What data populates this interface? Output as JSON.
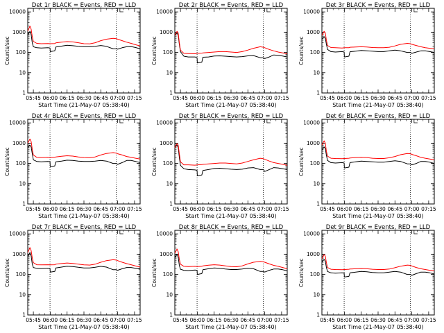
{
  "figure": {
    "background": "#ffffff",
    "axis_color": "#000000"
  },
  "shared": {
    "xlabel": "Start Time (21-May-07 05:38:40)",
    "ylabel": "Counts/sec",
    "x_ticks": [
      "05:45",
      "06:00",
      "06:15",
      "06:30",
      "06:45",
      "07:00",
      "07:15"
    ],
    "y_ticks": [
      "1",
      "10",
      "100",
      "1000",
      "10000"
    ],
    "x_tick_minutes": [
      5,
      20,
      35,
      50,
      65,
      80,
      95
    ],
    "xlim_minutes": [
      0,
      100
    ],
    "ylim": [
      1,
      15000
    ],
    "y_scale": "log",
    "vlines_minutes": [
      19.8,
      78.8
    ],
    "series_colors": {
      "events": "#000000",
      "lld": "#ff0000"
    }
  },
  "chart_data": [
    {
      "type": "line",
      "title": "Det 1r BLACK = Events, RED = LLD",
      "x": [
        0,
        2,
        3,
        4,
        5,
        8,
        12,
        18,
        19.8,
        20,
        24,
        25,
        30,
        35,
        40,
        45,
        50,
        55,
        60,
        65,
        70,
        76,
        78.8,
        80,
        84,
        88,
        92,
        96,
        100
      ],
      "series": [
        {
          "color": "#000000",
          "values": [
            700,
            1100,
            750,
            300,
            190,
            170,
            165,
            170,
            165,
            110,
            120,
            185,
            205,
            225,
            215,
            200,
            190,
            190,
            200,
            220,
            200,
            150,
            150,
            145,
            170,
            190,
            195,
            175,
            150
          ]
        },
        {
          "color": "#ff0000",
          "values": [
            1100,
            2000,
            1400,
            600,
            350,
            280,
            270,
            275,
            270,
            270,
            275,
            295,
            320,
            340,
            330,
            300,
            270,
            265,
            300,
            380,
            450,
            500,
            480,
            450,
            380,
            320,
            280,
            240,
            210
          ]
        }
      ]
    },
    {
      "type": "line",
      "title": "Det 2r BLACK = Events, RED = LLD",
      "x": [
        0,
        2,
        3,
        4,
        5,
        8,
        12,
        18,
        19.8,
        20,
        24,
        25,
        30,
        35,
        40,
        45,
        50,
        55,
        60,
        65,
        70,
        76,
        78.8,
        80,
        84,
        88,
        92,
        96,
        100
      ],
      "series": [
        {
          "color": "#000000",
          "values": [
            700,
            900,
            700,
            250,
            110,
            65,
            60,
            60,
            55,
            30,
            33,
            58,
            60,
            66,
            68,
            65,
            62,
            60,
            62,
            68,
            70,
            55,
            55,
            50,
            60,
            75,
            72,
            66,
            60
          ]
        },
        {
          "color": "#ff0000",
          "values": [
            700,
            1100,
            900,
            300,
            130,
            90,
            88,
            86,
            90,
            90,
            92,
            95,
            100,
            105,
            110,
            110,
            105,
            100,
            110,
            130,
            160,
            190,
            180,
            170,
            140,
            120,
            105,
            95,
            85
          ]
        }
      ]
    },
    {
      "type": "line",
      "title": "Det 3r BLACK = Events, RED = LLD",
      "x": [
        0,
        2,
        3,
        4,
        5,
        8,
        12,
        18,
        19.8,
        20,
        24,
        25,
        30,
        35,
        40,
        45,
        50,
        55,
        60,
        65,
        70,
        76,
        78.8,
        80,
        84,
        88,
        92,
        96,
        100
      ],
      "series": [
        {
          "color": "#000000",
          "values": [
            450,
            600,
            500,
            250,
            140,
            110,
            105,
            110,
            105,
            60,
            65,
            108,
            115,
            125,
            120,
            115,
            110,
            110,
            120,
            130,
            120,
            100,
            100,
            90,
            105,
            120,
            120,
            110,
            100
          ]
        },
        {
          "color": "#ff0000",
          "values": [
            700,
            1100,
            900,
            400,
            220,
            175,
            170,
            165,
            170,
            170,
            172,
            180,
            185,
            190,
            185,
            175,
            170,
            170,
            180,
            210,
            250,
            280,
            270,
            250,
            220,
            190,
            170,
            160,
            150
          ]
        }
      ]
    },
    {
      "type": "line",
      "title": "Det 4r BLACK = Events, RED = LLD",
      "x": [
        0,
        2,
        3,
        4,
        5,
        8,
        12,
        18,
        19.8,
        20,
        24,
        25,
        30,
        35,
        40,
        45,
        50,
        55,
        60,
        65,
        70,
        76,
        78.8,
        80,
        84,
        88,
        92,
        96,
        100
      ],
      "series": [
        {
          "color": "#000000",
          "values": [
            600,
            800,
            650,
            300,
            150,
            125,
            120,
            125,
            120,
            70,
            75,
            120,
            130,
            145,
            140,
            130,
            125,
            125,
            130,
            140,
            130,
            100,
            100,
            90,
            110,
            140,
            140,
            125,
            110
          ]
        },
        {
          "color": "#ff0000",
          "values": [
            1000,
            1600,
            1200,
            500,
            260,
            200,
            195,
            200,
            195,
            195,
            200,
            210,
            225,
            240,
            230,
            210,
            195,
            190,
            210,
            260,
            310,
            340,
            320,
            300,
            260,
            220,
            200,
            180,
            165
          ]
        }
      ]
    },
    {
      "type": "line",
      "title": "Det 5r BLACK = Events, RED = LLD",
      "x": [
        0,
        2,
        3,
        4,
        5,
        8,
        12,
        18,
        19.8,
        20,
        24,
        25,
        30,
        35,
        40,
        45,
        50,
        55,
        60,
        65,
        70,
        76,
        78.8,
        80,
        84,
        88,
        92,
        96,
        100
      ],
      "series": [
        {
          "color": "#000000",
          "values": [
            600,
            800,
            600,
            200,
            80,
            55,
            50,
            48,
            45,
            25,
            27,
            45,
            50,
            56,
            58,
            55,
            52,
            50,
            52,
            60,
            62,
            50,
            50,
            40,
            50,
            62,
            60,
            55,
            50
          ]
        },
        {
          "color": "#ff0000",
          "values": [
            600,
            950,
            800,
            300,
            120,
            85,
            85,
            82,
            85,
            85,
            87,
            90,
            95,
            100,
            105,
            105,
            100,
            95,
            105,
            125,
            150,
            180,
            170,
            160,
            130,
            110,
            100,
            90,
            80
          ]
        }
      ]
    },
    {
      "type": "line",
      "title": "Det 6r BLACK = Events, RED = LLD",
      "x": [
        0,
        2,
        3,
        4,
        5,
        8,
        12,
        18,
        19.8,
        20,
        24,
        25,
        30,
        35,
        40,
        45,
        50,
        55,
        60,
        65,
        70,
        76,
        78.8,
        80,
        84,
        88,
        92,
        96,
        100
      ],
      "series": [
        {
          "color": "#000000",
          "values": [
            450,
            650,
            550,
            250,
            140,
            110,
            105,
            110,
            105,
            60,
            65,
            110,
            120,
            130,
            125,
            120,
            115,
            115,
            125,
            135,
            125,
            95,
            95,
            85,
            100,
            125,
            125,
            115,
            100
          ]
        },
        {
          "color": "#ff0000",
          "values": [
            800,
            1300,
            1000,
            400,
            230,
            180,
            175,
            170,
            175,
            175,
            180,
            185,
            195,
            200,
            195,
            180,
            175,
            175,
            190,
            220,
            270,
            310,
            300,
            280,
            240,
            200,
            180,
            165,
            150
          ]
        }
      ]
    },
    {
      "type": "line",
      "title": "Det 7r BLACK = Events, RED = LLD",
      "x": [
        0,
        2,
        3,
        4,
        5,
        8,
        12,
        18,
        19.8,
        20,
        24,
        25,
        30,
        35,
        40,
        45,
        50,
        55,
        60,
        65,
        70,
        76,
        78.8,
        80,
        84,
        88,
        92,
        96,
        100
      ],
      "series": [
        {
          "color": "#000000",
          "values": [
            750,
            1200,
            800,
            330,
            220,
            200,
            195,
            205,
            195,
            130,
            140,
            210,
            230,
            255,
            245,
            225,
            210,
            210,
            225,
            250,
            230,
            170,
            170,
            160,
            190,
            220,
            220,
            200,
            180
          ]
        },
        {
          "color": "#ff0000",
          "values": [
            1200,
            2100,
            1500,
            650,
            380,
            300,
            295,
            300,
            295,
            295,
            300,
            320,
            345,
            365,
            350,
            320,
            295,
            290,
            320,
            400,
            480,
            530,
            510,
            480,
            400,
            340,
            300,
            260,
            230
          ]
        }
      ]
    },
    {
      "type": "line",
      "title": "Det 8r BLACK = Events, RED = LLD",
      "x": [
        0,
        2,
        3,
        4,
        5,
        8,
        12,
        18,
        19.8,
        20,
        24,
        25,
        30,
        35,
        40,
        45,
        50,
        55,
        60,
        65,
        70,
        76,
        78.8,
        80,
        84,
        88,
        92,
        96,
        100
      ],
      "series": [
        {
          "color": "#000000",
          "values": [
            650,
            1000,
            700,
            280,
            180,
            160,
            155,
            165,
            160,
            100,
            110,
            170,
            190,
            210,
            200,
            185,
            175,
            175,
            185,
            205,
            190,
            140,
            140,
            130,
            160,
            185,
            185,
            170,
            150
          ]
        },
        {
          "color": "#ff0000",
          "values": [
            1100,
            1800,
            1300,
            550,
            320,
            250,
            245,
            250,
            245,
            245,
            250,
            265,
            285,
            300,
            290,
            265,
            245,
            240,
            265,
            330,
            400,
            440,
            420,
            400,
            330,
            280,
            250,
            220,
            190
          ]
        }
      ]
    },
    {
      "type": "line",
      "title": "Det 9r BLACK = Events, RED = LLD",
      "x": [
        0,
        2,
        3,
        4,
        5,
        8,
        12,
        18,
        19.8,
        20,
        24,
        25,
        30,
        35,
        40,
        45,
        50,
        55,
        60,
        65,
        70,
        76,
        78.8,
        80,
        84,
        88,
        92,
        96,
        100
      ],
      "series": [
        {
          "color": "#000000",
          "values": [
            400,
            550,
            450,
            220,
            140,
            120,
            115,
            120,
            115,
            75,
            80,
            120,
            130,
            140,
            135,
            125,
            120,
            120,
            130,
            140,
            130,
            100,
            100,
            90,
            110,
            130,
            130,
            120,
            105
          ]
        },
        {
          "color": "#ff0000",
          "values": [
            600,
            950,
            800,
            380,
            220,
            180,
            175,
            170,
            175,
            175,
            180,
            185,
            190,
            195,
            190,
            180,
            175,
            175,
            185,
            215,
            255,
            290,
            280,
            260,
            220,
            190,
            175,
            160,
            150
          ]
        }
      ]
    }
  ]
}
